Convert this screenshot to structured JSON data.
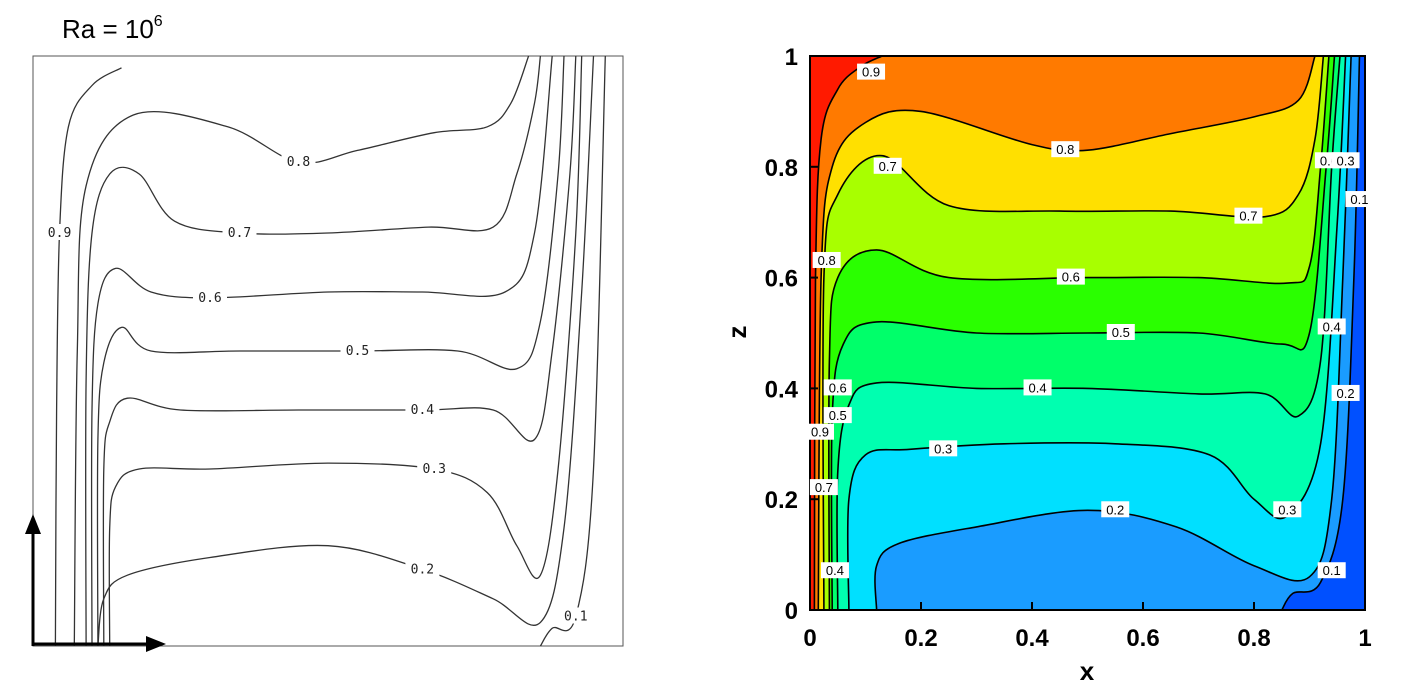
{
  "chart_data": [
    {
      "type": "contour",
      "title_base": "Ra = 10",
      "title_exp": "6",
      "xlabel": "",
      "ylabel": "",
      "xlim": [
        0,
        1
      ],
      "ylim": [
        0,
        1
      ],
      "contour_levels": [
        {
          "label": "0.9",
          "points": [
            [
              0.15,
              0.98
            ],
            [
              0.1,
              0.95
            ],
            [
              0.06,
              0.88
            ],
            [
              0.045,
              0.7
            ],
            [
              0.04,
              0.4
            ],
            [
              0.038,
              0.0
            ]
          ]
        },
        {
          "label": "0.8",
          "points": [
            [
              0.07,
              0.0
            ],
            [
              0.075,
              0.5
            ],
            [
              0.09,
              0.78
            ],
            [
              0.17,
              0.9
            ],
            [
              0.33,
              0.88
            ],
            [
              0.45,
              0.82
            ],
            [
              0.55,
              0.84
            ],
            [
              0.68,
              0.87
            ],
            [
              0.77,
              0.88
            ],
            [
              0.81,
              0.92
            ],
            [
              0.84,
              1.0
            ]
          ]
        },
        {
          "label": "0.7",
          "points": [
            [
              0.09,
              0.0
            ],
            [
              0.09,
              0.45
            ],
            [
              0.1,
              0.7
            ],
            [
              0.13,
              0.8
            ],
            [
              0.18,
              0.8
            ],
            [
              0.24,
              0.72
            ],
            [
              0.35,
              0.7
            ],
            [
              0.5,
              0.7
            ],
            [
              0.67,
              0.71
            ],
            [
              0.78,
              0.71
            ],
            [
              0.82,
              0.8
            ],
            [
              0.85,
              0.92
            ],
            [
              0.86,
              1.0
            ]
          ]
        },
        {
          "label": "0.6",
          "points": [
            [
              0.1,
              0.0
            ],
            [
              0.1,
              0.4
            ],
            [
              0.11,
              0.58
            ],
            [
              0.14,
              0.64
            ],
            [
              0.2,
              0.6
            ],
            [
              0.3,
              0.59
            ],
            [
              0.5,
              0.6
            ],
            [
              0.66,
              0.6
            ],
            [
              0.8,
              0.6
            ],
            [
              0.85,
              0.7
            ],
            [
              0.88,
              1.0
            ]
          ]
        },
        {
          "label": "0.5",
          "points": [
            [
              0.11,
              0.0
            ],
            [
              0.11,
              0.35
            ],
            [
              0.12,
              0.48
            ],
            [
              0.15,
              0.54
            ],
            [
              0.2,
              0.5
            ],
            [
              0.35,
              0.5
            ],
            [
              0.55,
              0.5
            ],
            [
              0.72,
              0.5
            ],
            [
              0.82,
              0.47
            ],
            [
              0.86,
              0.55
            ],
            [
              0.89,
              0.8
            ],
            [
              0.9,
              1.0
            ]
          ]
        },
        {
          "label": "0.4",
          "points": [
            [
              0.12,
              0.0
            ],
            [
              0.12,
              0.3
            ],
            [
              0.13,
              0.38
            ],
            [
              0.16,
              0.42
            ],
            [
              0.25,
              0.4
            ],
            [
              0.45,
              0.4
            ],
            [
              0.66,
              0.4
            ],
            [
              0.78,
              0.4
            ],
            [
              0.85,
              0.35
            ],
            [
              0.88,
              0.5
            ],
            [
              0.91,
              0.8
            ],
            [
              0.92,
              1.0
            ]
          ]
        },
        {
          "label": "0.3",
          "points": [
            [
              0.13,
              0.0
            ],
            [
              0.13,
              0.2
            ],
            [
              0.14,
              0.27
            ],
            [
              0.18,
              0.3
            ],
            [
              0.3,
              0.3
            ],
            [
              0.5,
              0.31
            ],
            [
              0.68,
              0.3
            ],
            [
              0.77,
              0.26
            ],
            [
              0.82,
              0.17
            ],
            [
              0.86,
              0.12
            ],
            [
              0.89,
              0.3
            ],
            [
              0.92,
              0.7
            ],
            [
              0.93,
              1.0
            ]
          ]
        },
        {
          "label": "0.2",
          "points": [
            [
              0.11,
              0.0
            ],
            [
              0.12,
              0.08
            ],
            [
              0.16,
              0.12
            ],
            [
              0.3,
              0.15
            ],
            [
              0.5,
              0.17
            ],
            [
              0.66,
              0.13
            ],
            [
              0.78,
              0.08
            ],
            [
              0.86,
              0.04
            ],
            [
              0.9,
              0.2
            ],
            [
              0.93,
              0.6
            ],
            [
              0.95,
              1.0
            ]
          ]
        },
        {
          "label": "0.1",
          "points": [
            [
              0.86,
              0.0
            ],
            [
              0.88,
              0.03
            ],
            [
              0.92,
              0.05
            ],
            [
              0.95,
              0.3
            ],
            [
              0.97,
              1.0
            ]
          ]
        }
      ]
    },
    {
      "type": "filled-contour",
      "title": "",
      "xlabel": "x",
      "ylabel": "z",
      "xlim": [
        0,
        1
      ],
      "ylim": [
        0,
        1
      ],
      "xticks": [
        "0",
        "0.2",
        "0.4",
        "0.6",
        "0.8",
        "1"
      ],
      "yticks": [
        "0",
        "0.2",
        "0.4",
        "0.6",
        "0.8",
        "1"
      ],
      "fill_colors": [
        "#0050ff",
        "#1a9cff",
        "#00e0ff",
        "#00ffb0",
        "#00ff6a",
        "#2aff00",
        "#a8ff00",
        "#ffe000",
        "#ff7a00",
        "#ff1a00"
      ],
      "contour_levels": [
        {
          "label": "0.1",
          "points": [
            [
              0.85,
              0.0
            ],
            [
              0.87,
              0.03
            ],
            [
              0.92,
              0.05
            ],
            [
              0.96,
              0.2
            ],
            [
              0.98,
              0.6
            ],
            [
              0.99,
              1.0
            ]
          ]
        },
        {
          "label": "0.2",
          "points": [
            [
              0.12,
              0.0
            ],
            [
              0.12,
              0.08
            ],
            [
              0.16,
              0.12
            ],
            [
              0.3,
              0.15
            ],
            [
              0.5,
              0.18
            ],
            [
              0.66,
              0.15
            ],
            [
              0.8,
              0.08
            ],
            [
              0.9,
              0.06
            ],
            [
              0.94,
              0.2
            ],
            [
              0.96,
              0.6
            ],
            [
              0.975,
              1.0
            ]
          ]
        },
        {
          "label": "0.3",
          "points": [
            [
              0.07,
              0.0
            ],
            [
              0.07,
              0.2
            ],
            [
              0.1,
              0.28
            ],
            [
              0.18,
              0.29
            ],
            [
              0.35,
              0.3
            ],
            [
              0.55,
              0.3
            ],
            [
              0.72,
              0.28
            ],
            [
              0.8,
              0.2
            ],
            [
              0.86,
              0.17
            ],
            [
              0.92,
              0.3
            ],
            [
              0.95,
              0.7
            ],
            [
              0.965,
              1.0
            ]
          ]
        },
        {
          "label": "0.4",
          "points": [
            [
              0.05,
              0.0
            ],
            [
              0.05,
              0.25
            ],
            [
              0.07,
              0.37
            ],
            [
              0.12,
              0.41
            ],
            [
              0.3,
              0.4
            ],
            [
              0.5,
              0.4
            ],
            [
              0.7,
              0.39
            ],
            [
              0.82,
              0.39
            ],
            [
              0.88,
              0.35
            ],
            [
              0.92,
              0.45
            ],
            [
              0.94,
              0.8
            ],
            [
              0.955,
              1.0
            ]
          ]
        },
        {
          "label": "0.5",
          "points": [
            [
              0.04,
              0.0
            ],
            [
              0.04,
              0.35
            ],
            [
              0.06,
              0.48
            ],
            [
              0.12,
              0.52
            ],
            [
              0.3,
              0.5
            ],
            [
              0.5,
              0.5
            ],
            [
              0.7,
              0.5
            ],
            [
              0.85,
              0.48
            ],
            [
              0.9,
              0.5
            ],
            [
              0.93,
              0.8
            ],
            [
              0.945,
              1.0
            ]
          ]
        },
        {
          "label": "0.6",
          "points": [
            [
              0.035,
              0.0
            ],
            [
              0.035,
              0.45
            ],
            [
              0.05,
              0.6
            ],
            [
              0.12,
              0.65
            ],
            [
              0.25,
              0.6
            ],
            [
              0.5,
              0.6
            ],
            [
              0.7,
              0.6
            ],
            [
              0.86,
              0.59
            ],
            [
              0.9,
              0.62
            ],
            [
              0.92,
              0.8
            ],
            [
              0.935,
              1.0
            ]
          ]
        },
        {
          "label": "0.7",
          "points": [
            [
              0.025,
              0.0
            ],
            [
              0.025,
              0.6
            ],
            [
              0.05,
              0.75
            ],
            [
              0.13,
              0.82
            ],
            [
              0.25,
              0.73
            ],
            [
              0.45,
              0.72
            ],
            [
              0.65,
              0.72
            ],
            [
              0.82,
              0.71
            ],
            [
              0.88,
              0.75
            ],
            [
              0.91,
              0.85
            ],
            [
              0.925,
              1.0
            ]
          ]
        },
        {
          "label": "0.8",
          "points": [
            [
              0.015,
              0.0
            ],
            [
              0.02,
              0.6
            ],
            [
              0.04,
              0.8
            ],
            [
              0.1,
              0.88
            ],
            [
              0.2,
              0.9
            ],
            [
              0.4,
              0.84
            ],
            [
              0.5,
              0.83
            ],
            [
              0.65,
              0.86
            ],
            [
              0.8,
              0.89
            ],
            [
              0.88,
              0.92
            ],
            [
              0.91,
              1.0
            ]
          ]
        },
        {
          "label": "0.9",
          "points": [
            [
              0.008,
              0.0
            ],
            [
              0.01,
              0.6
            ],
            [
              0.02,
              0.85
            ],
            [
              0.05,
              0.94
            ],
            [
              0.09,
              0.98
            ],
            [
              0.13,
              1.0
            ]
          ]
        }
      ],
      "inline_labels": [
        {
          "label": "0.9",
          "x": 0.11,
          "y": 0.97
        },
        {
          "label": "0.8",
          "x": 0.46,
          "y": 0.83
        },
        {
          "label": "0.7",
          "x": 0.14,
          "y": 0.8
        },
        {
          "label": "0.7",
          "x": 0.79,
          "y": 0.71
        },
        {
          "label": "0.6",
          "x": 0.47,
          "y": 0.6
        },
        {
          "label": "0.5",
          "x": 0.56,
          "y": 0.5
        },
        {
          "label": "0.4",
          "x": 0.41,
          "y": 0.4
        },
        {
          "label": "0.3",
          "x": 0.24,
          "y": 0.29
        },
        {
          "label": "0.2",
          "x": 0.55,
          "y": 0.18
        },
        {
          "label": "0.3",
          "x": 0.86,
          "y": 0.18
        },
        {
          "label": "0.1",
          "x": 0.94,
          "y": 0.07
        },
        {
          "label": "0.8",
          "x": 0.03,
          "y": 0.63
        },
        {
          "label": "0.6",
          "x": 0.05,
          "y": 0.4
        },
        {
          "label": "0.5",
          "x": 0.05,
          "y": 0.35
        },
        {
          "label": "0.9",
          "x": 0.018,
          "y": 0.32
        },
        {
          "label": "0.7",
          "x": 0.025,
          "y": 0.22
        },
        {
          "label": "0.4",
          "x": 0.045,
          "y": 0.07
        },
        {
          "label": "0.4",
          "x": 0.94,
          "y": 0.51
        },
        {
          "label": "0.2",
          "x": 0.965,
          "y": 0.39
        },
        {
          "label": "0.6",
          "x": 0.935,
          "y": 0.81
        },
        {
          "label": "0.3",
          "x": 0.965,
          "y": 0.81
        },
        {
          "label": "0.1",
          "x": 0.99,
          "y": 0.74
        }
      ]
    }
  ]
}
